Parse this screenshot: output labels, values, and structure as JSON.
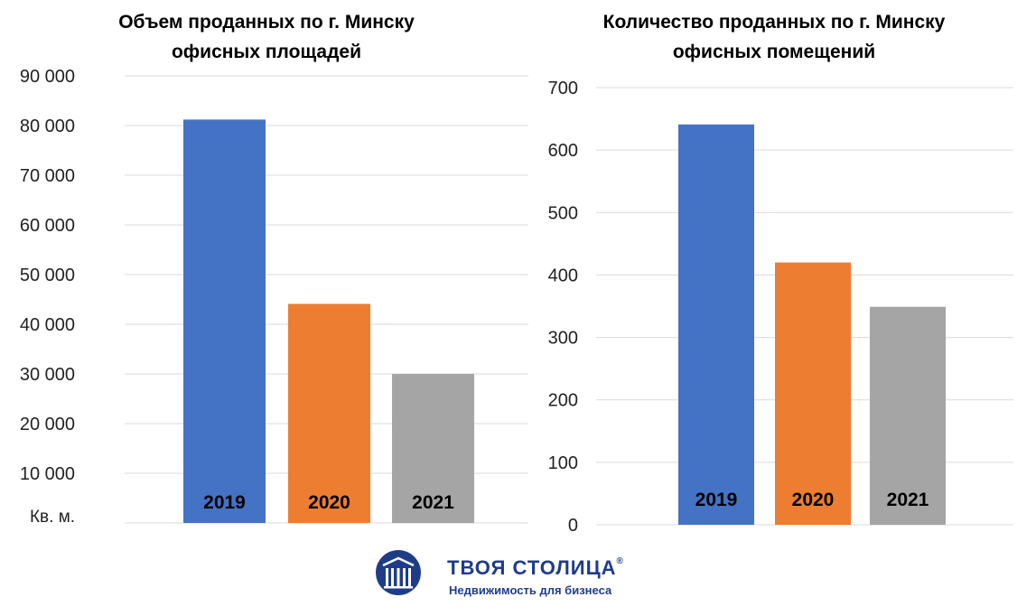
{
  "charts": {
    "chart_data": [
      {
        "type": "bar",
        "title_lines": [
          "Объем проданных по г. Минску",
          "офисных площадей"
        ],
        "categories": [
          "2019",
          "2020",
          "2021"
        ],
        "values": [
          81200,
          44100,
          30000
        ],
        "colors": [
          "#4472c4",
          "#ed7d31",
          "#a5a5a5"
        ],
        "ylim": [
          0,
          90000
        ],
        "yticks": [
          10000,
          20000,
          30000,
          40000,
          50000,
          60000,
          70000,
          80000,
          90000
        ],
        "ytick_labels": [
          "10 000",
          "20 000",
          "30 000",
          "40 000",
          "50 000",
          "60 000",
          "70 000",
          "80 000",
          "90 000"
        ],
        "unit_label": "Кв. м.",
        "grid": true
      },
      {
        "type": "bar",
        "title_lines": [
          "Количество проданных по г. Минску",
          "офисных помещений"
        ],
        "categories": [
          "2019",
          "2020",
          "2021"
        ],
        "values": [
          641,
          420,
          349
        ],
        "colors": [
          "#4472c4",
          "#ed7d31",
          "#a5a5a5"
        ],
        "ylim": [
          0,
          700
        ],
        "yticks": [
          0,
          100,
          200,
          300,
          400,
          500,
          600,
          700
        ],
        "ytick_labels": [
          "0",
          "100",
          "200",
          "300",
          "400",
          "500",
          "600",
          "700"
        ],
        "grid": true
      }
    ]
  },
  "brand": {
    "name": "ТВОЯ СТОЛИЦА",
    "registered": "®",
    "tagline": "Недвижимость для бизнеса",
    "color": "#1f3c88"
  }
}
